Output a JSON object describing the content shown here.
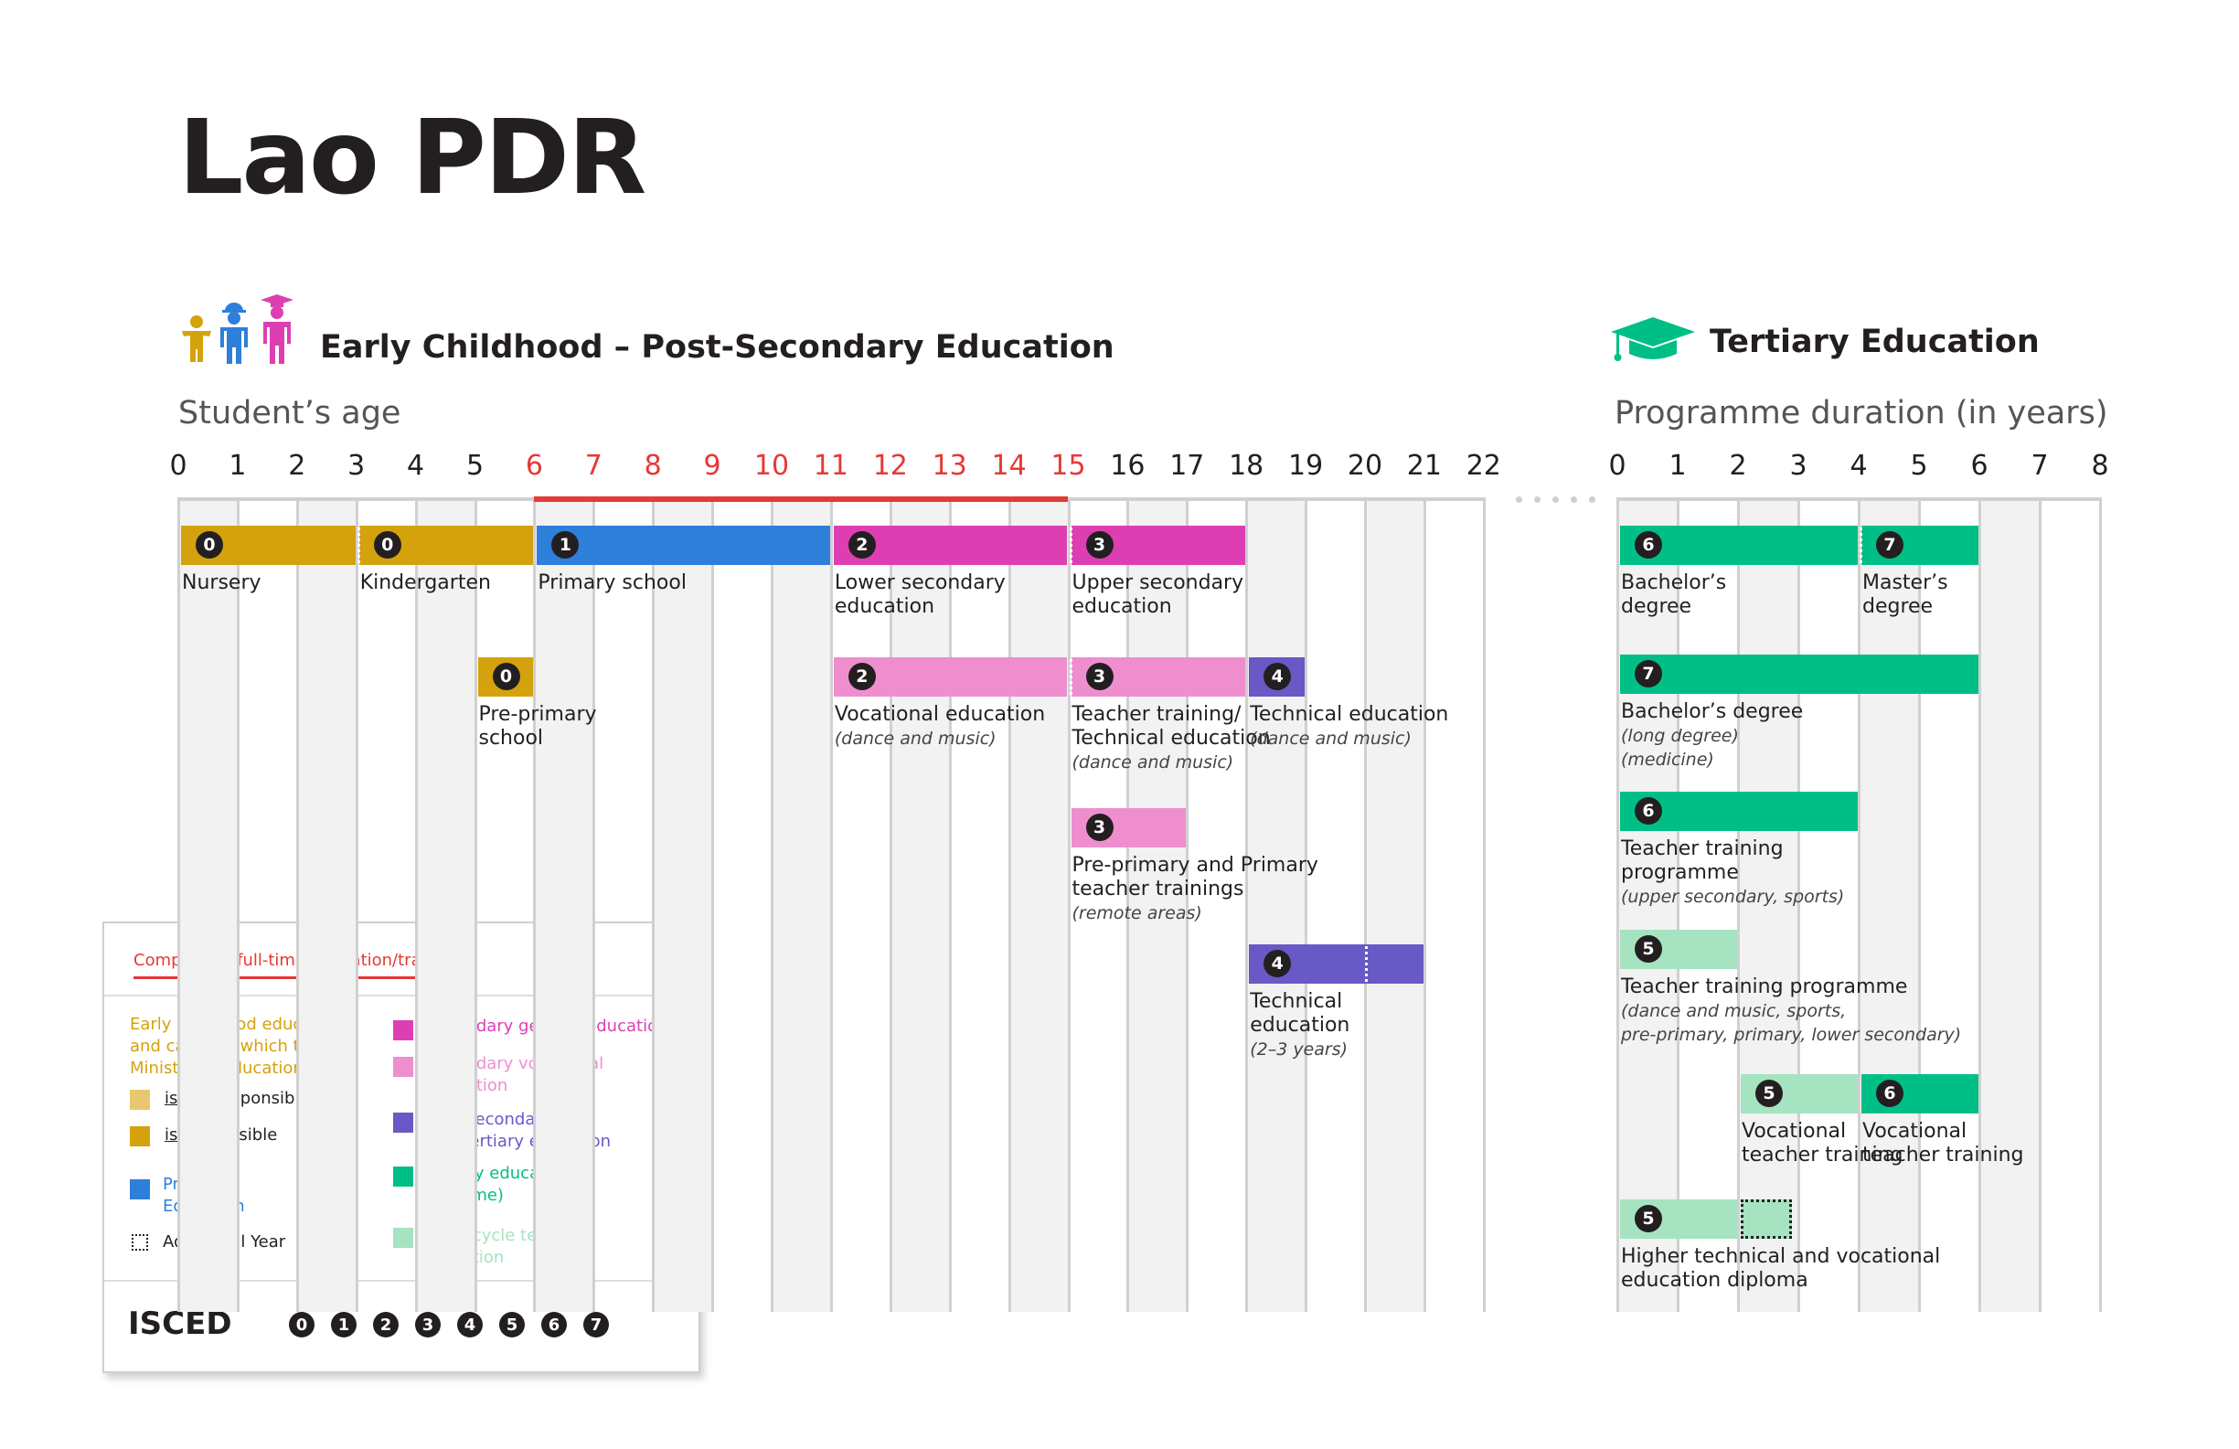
{
  "title": "Lao PDR",
  "section_left": "Early Childhood – Post-Secondary Education",
  "section_right": "Tertiary Education",
  "axis_left_label": "Student’s age",
  "axis_right_label": "Programme duration (in years)",
  "axis_left_ticks": [
    "0",
    "1",
    "2",
    "3",
    "4",
    "5",
    "6",
    "7",
    "8",
    "9",
    "10",
    "11",
    "12",
    "13",
    "14",
    "15",
    "16",
    "17",
    "18",
    "19",
    "20",
    "21",
    "22"
  ],
  "axis_right_ticks": [
    "0",
    "1",
    "2",
    "3",
    "4",
    "5",
    "6",
    "7",
    "8"
  ],
  "compulsory_range": [
    6,
    15
  ],
  "colors": {
    "ecec_not": "#e6c96f",
    "ecec": "#d4a20d",
    "primary": "#2e7fd9",
    "secondary_general": "#dd3fb2",
    "secondary_vocational": "#ee8ecf",
    "post_secondary": "#6859c6",
    "tertiary": "#00bf86",
    "short_cycle": "#a6e3c0",
    "compulsory": "#e53935"
  },
  "chart_data": {
    "type": "table",
    "rows_left": [
      {
        "bars": [
          {
            "start": 0,
            "end": 3,
            "isced": "0",
            "color": "ecec",
            "label": [
              "Nursery"
            ]
          },
          {
            "start": 3,
            "end": 6,
            "isced": "0",
            "color": "ecec",
            "label": [
              "Kindergarten"
            ],
            "dotted_start": true
          },
          {
            "start": 6,
            "end": 11,
            "isced": "1",
            "color": "primary",
            "label": [
              "Primary school"
            ]
          },
          {
            "start": 11,
            "end": 15,
            "isced": "2",
            "color": "secondary_general",
            "label": [
              "Lower secondary",
              "education"
            ]
          },
          {
            "start": 15,
            "end": 18,
            "isced": "3",
            "color": "secondary_general",
            "label": [
              "Upper secondary",
              "education"
            ],
            "dotted_start": true
          }
        ]
      },
      {
        "bars": [
          {
            "start": 5,
            "end": 6,
            "isced": "0",
            "color": "ecec",
            "label": [
              "Pre-primary",
              "school"
            ]
          },
          {
            "start": 11,
            "end": 15,
            "isced": "2",
            "color": "secondary_vocational",
            "label": [
              "Vocational education"
            ],
            "note": "(dance and music)"
          },
          {
            "start": 15,
            "end": 18,
            "isced": "3",
            "color": "secondary_vocational",
            "label": [
              "Teacher training/",
              "Technical education"
            ],
            "note": "(dance and music)",
            "dotted_start": true
          },
          {
            "start": 18,
            "end": 19,
            "isced": "4",
            "color": "post_secondary",
            "label": [
              "Technical education"
            ],
            "note": "(dance and music)"
          }
        ]
      },
      {
        "bars": [
          {
            "start": 15,
            "end": 17,
            "isced": "3",
            "color": "secondary_vocational",
            "label": [
              "Pre-primary and Primary",
              "teacher trainings"
            ],
            "note": "(remote areas)"
          }
        ]
      },
      {
        "bars": [
          {
            "start": 18,
            "end": 21,
            "isced": "4",
            "color": "post_secondary",
            "label": [
              "Technical",
              "education"
            ],
            "note": "(2–3 years)",
            "dotted_at": 20
          }
        ]
      }
    ],
    "rows_right": [
      {
        "bars": [
          {
            "start": 0,
            "end": 4,
            "isced": "6",
            "color": "tertiary",
            "label": [
              "Bachelor’s",
              "degree"
            ]
          },
          {
            "start": 4,
            "end": 6,
            "isced": "7",
            "color": "tertiary",
            "label": [
              "Master’s",
              "degree"
            ],
            "dotted_start": true
          }
        ]
      },
      {
        "bars": [
          {
            "start": 0,
            "end": 6,
            "isced": "7",
            "color": "tertiary",
            "label": [
              "Bachelor’s degree"
            ],
            "note": "(long degree)",
            "note2": "(medicine)"
          }
        ]
      },
      {
        "bars": [
          {
            "start": 0,
            "end": 4,
            "isced": "6",
            "color": "tertiary",
            "label": [
              "Teacher training",
              "programme"
            ],
            "note": "(upper secondary, sports)"
          }
        ]
      },
      {
        "bars": [
          {
            "start": 0,
            "end": 2,
            "isced": "5",
            "color": "short_cycle",
            "label": [
              "Teacher training programme"
            ],
            "note": "(dance and music, sports,",
            "note2": "pre-primary, primary, lower secondary)"
          }
        ]
      },
      {
        "bars": [
          {
            "start": 2,
            "end": 4,
            "isced": "5",
            "color": "short_cycle",
            "label": [
              "Vocational",
              "teacher training"
            ]
          },
          {
            "start": 4,
            "end": 6,
            "isced": "6",
            "color": "tertiary",
            "label": [
              "Vocational",
              "teacher training"
            ]
          }
        ]
      },
      {
        "bars": [
          {
            "start": 0,
            "end": 2,
            "isced": "5",
            "color": "short_cycle",
            "label": [
              "Higher technical and vocational",
              "education diploma"
            ]
          },
          {
            "start": 2,
            "end": 3,
            "isced": "",
            "color": "short_cycle",
            "additional_year": true,
            "label": []
          }
        ]
      }
    ]
  },
  "legend": {
    "compulsory": "Compulsory full-time education/training",
    "ecec_heading": [
      "Early childhood education",
      "and care, for which the",
      "Ministry of Education:"
    ],
    "ecec_not_prefix": "is not",
    "ecec_not_suffix": " responsible",
    "ecec_is_prefix": "is",
    "ecec_is_suffix": " responsible",
    "primary": [
      "Primary",
      "Education"
    ],
    "additional_year": "Additional Year",
    "secondary_general": "Secondary general education",
    "secondary_vocational": [
      "Secondary vocational",
      "education"
    ],
    "post_secondary": [
      "Post-secondary",
      "non-tertiary education"
    ],
    "tertiary": [
      "Tertiary education",
      "(full-time)"
    ],
    "short_cycle": [
      "Short-cycle tertiary",
      "education"
    ],
    "isced_label": "ISCED",
    "isced_levels": [
      "0",
      "1",
      "2",
      "3",
      "4",
      "5",
      "6",
      "7"
    ]
  }
}
